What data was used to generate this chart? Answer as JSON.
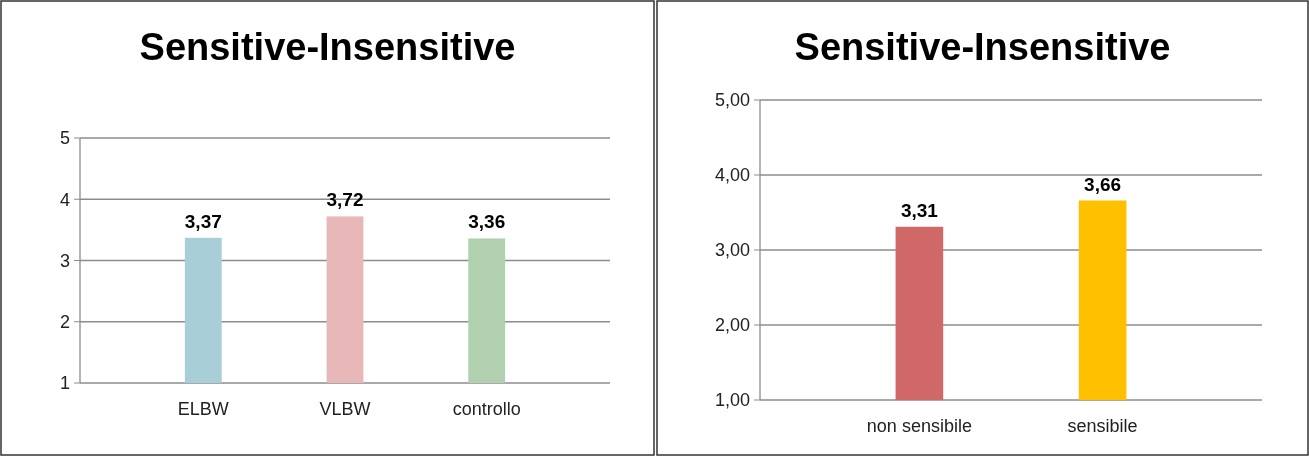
{
  "chart_data": [
    {
      "type": "bar",
      "title": "Sensitive-Insensitive",
      "categories": [
        "ELBW",
        "VLBW",
        "controllo"
      ],
      "values": [
        3.37,
        3.72,
        3.36
      ],
      "colors": [
        "#a8cfd8",
        "#e8b8b8",
        "#b0d0b0"
      ],
      "value_labels": [
        "3,37",
        "3,72",
        "3,36"
      ],
      "ylim": [
        1,
        5
      ],
      "yticks": [
        1,
        2,
        3,
        4,
        5
      ],
      "grid": "y"
    },
    {
      "type": "bar",
      "title": "Sensitive-Insensitive",
      "categories": [
        "non sensibile",
        "sensibile"
      ],
      "values": [
        3.31,
        3.66
      ],
      "colors": [
        "#d06868",
        "#ffc000"
      ],
      "value_labels": [
        "3,31",
        "3,66"
      ],
      "ylim": [
        1,
        5
      ],
      "yticks": [
        {
          "value": 1,
          "label": "1,00"
        },
        {
          "value": 2,
          "label": "2,00"
        },
        {
          "value": 3,
          "label": "3,00"
        },
        {
          "value": 4,
          "label": "4,00"
        },
        {
          "value": 5,
          "label": "5,00"
        }
      ],
      "grid": "y"
    }
  ]
}
